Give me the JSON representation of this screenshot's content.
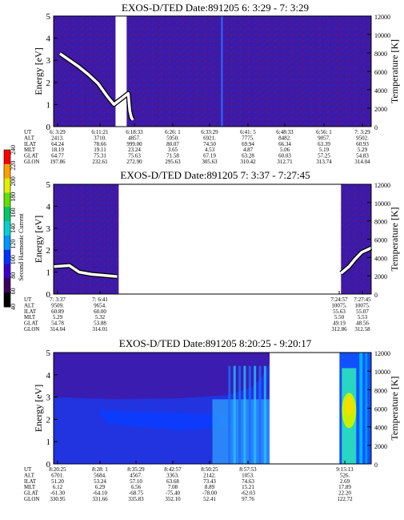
{
  "chart_data": [
    {
      "type": "heatmap",
      "title": "EXOS-D/TED  Date:891205  6: 3:29 - 7: 3:29",
      "ylabel": "Energy [eV]",
      "ylabel_right": "Temperature [K]",
      "ylim": [
        0,
        5
      ],
      "yticks": [
        "0",
        "1",
        "2",
        "3",
        "4",
        "5"
      ],
      "ylim_right": [
        0,
        12000
      ],
      "yticks_right": [
        "0",
        "2000",
        "4000",
        "6000",
        "8000",
        "10000",
        "12000"
      ],
      "background_value": 20,
      "data_gaps": [
        {
          "from": 0.195,
          "to": 0.23
        }
      ],
      "bright_streak_at": 0.53,
      "temperature_trace": [
        [
          0.02,
          3.3
        ],
        [
          0.05,
          3.0
        ],
        [
          0.08,
          2.7
        ],
        [
          0.11,
          2.35
        ],
        [
          0.14,
          1.95
        ],
        [
          0.17,
          1.35
        ],
        [
          0.19,
          1.0
        ],
        [
          0.235,
          1.5
        ],
        [
          0.24,
          0.7
        ],
        [
          0.245,
          0.4
        ],
        [
          0.25,
          0.3
        ]
      ],
      "ephemeris": {
        "labels": [
          "UT",
          "ALT",
          "ILAT",
          "MLT",
          "GLAT",
          "GLON"
        ],
        "columns": [
          [
            "6: 3:29",
            "2413.",
            "64.24",
            "18.19",
            "64.77",
            "197.86"
          ],
          [
            "6:11:21",
            "3710.",
            "78.66",
            "19.11",
            "75.31",
            "232.61"
          ],
          [
            "6:18:33",
            "4857.",
            "999.00",
            "23.24",
            "75.63",
            "272.90"
          ],
          [
            "6:26: 1",
            "5950.",
            "80.07",
            "3.65",
            "71.58",
            "295.63"
          ],
          [
            "6:33:29",
            "6921.",
            "74.50",
            "4.53",
            "67.19",
            "305.63"
          ],
          [
            "6:41: 5",
            "7775.",
            "69.94",
            "4.87",
            "63.28",
            "310.42"
          ],
          [
            "6:48:33",
            "8482.",
            "66.34",
            "5.06",
            "60.03",
            "312.71"
          ],
          [
            "6:56: 1",
            "9057.",
            "63.39",
            "5.19",
            "57.25",
            "313.74"
          ],
          [
            "7: 3:29",
            "9502.",
            "60.93",
            "5.29",
            "54.83",
            "314.04"
          ]
        ]
      }
    },
    {
      "type": "heatmap",
      "title": "EXOS-D/TED  Date:891205  7: 3:37 - 7:27:45",
      "ylabel": "Energy [eV]",
      "ylabel_right": "Temperature [K]",
      "ylim": [
        0,
        5
      ],
      "yticks": [
        "0",
        "1",
        "2",
        "3",
        "4",
        "5"
      ],
      "ylim_right": [
        0,
        12000
      ],
      "yticks_right": [
        "0",
        "2000",
        "4000",
        "6000",
        "8000",
        "10000",
        "12000"
      ],
      "background_value": 20,
      "data_segments": [
        {
          "from": 0.0,
          "to": 0.205
        },
        {
          "from": 0.905,
          "to": 1.0
        }
      ],
      "temperature_trace": [
        [
          0.0,
          1.25
        ],
        [
          0.05,
          1.3
        ],
        [
          0.08,
          1.0
        ],
        [
          0.12,
          0.9
        ],
        [
          0.16,
          0.85
        ],
        [
          0.2,
          0.8
        ],
        [
          0.905,
          0.95
        ],
        [
          0.93,
          1.25
        ],
        [
          0.95,
          1.6
        ],
        [
          0.97,
          1.9
        ],
        [
          1.0,
          2.1
        ]
      ],
      "ephemeris": {
        "labels": [
          "UT",
          "ALT",
          "ILAT",
          "MLT",
          "GLAT",
          "GLON"
        ],
        "columns": [
          [
            "7: 3:37",
            "9509.",
            "60.89",
            "5.29",
            "54.78",
            "314.04"
          ],
          [
            "7: 6:41",
            "9654.",
            "60.00",
            "5.32",
            "53.88",
            "314.01"
          ],
          [
            "7:24:57",
            "10075.",
            "55.63",
            "5.50",
            "49.19",
            "312.86"
          ],
          [
            "7:27:45",
            "10075.",
            "55.07",
            "5.53",
            "48.56",
            "312.58"
          ]
        ]
      }
    },
    {
      "type": "heatmap",
      "title": "EXOS-D/TED  Date:891205  8:20:25 - 9:20:17",
      "ylabel": "Energy [eV]",
      "ylabel_right": "Temperature [K]",
      "ylim": [
        0,
        5
      ],
      "yticks": [
        "0",
        "1",
        "2",
        "3",
        "4",
        "5"
      ],
      "ylim_right": [
        0,
        12000
      ],
      "yticks_right": [
        "0",
        "2000",
        "4000",
        "6000",
        "8000",
        "10000",
        "12000"
      ],
      "data_segments": [
        {
          "from": 0.0,
          "to": 0.68
        },
        {
          "from": 0.9,
          "to": 1.0
        }
      ],
      "features": {
        "upper_boundary": [
          [
            0.0,
            3.0
          ],
          [
            0.2,
            2.9
          ],
          [
            0.4,
            2.95
          ],
          [
            0.55,
            3.1
          ],
          [
            0.62,
            3.4
          ],
          [
            0.65,
            3.8
          ],
          [
            0.68,
            4.5
          ]
        ],
        "dense_core": [
          [
            0.14,
            2.4
          ],
          [
            0.55,
            2.2
          ],
          [
            0.6,
            1.7
          ],
          [
            0.4,
            1.5
          ],
          [
            0.17,
            1.8
          ]
        ],
        "light_band": [
          [
            0.5,
            1.6
          ],
          [
            0.68,
            1.2
          ]
        ]
      },
      "ephemeris": {
        "labels": [
          "UT",
          "ALT",
          "ILAT",
          "MLT",
          "GLAT",
          "GLON"
        ],
        "columns": [
          [
            "8:20:25",
            "6701.",
            "51.20",
            "6.12",
            "-61.30",
            "330.95"
          ],
          [
            "8:28: 1",
            "5684.",
            "53.24",
            "6.29",
            "-64.10",
            "331.66"
          ],
          [
            "8:35:29",
            "4567.",
            "57.10",
            "6.56",
            "-68.75",
            "335.83"
          ],
          [
            "8:42:57",
            "3363.",
            "63.68",
            "7.08",
            "-75.40",
            "352.10"
          ],
          [
            "8:50:25",
            "2142.",
            "73.43",
            "8.89",
            "-78.00",
            "52.41"
          ],
          [
            "8:57:53",
            "1053.",
            "74.63",
            "15.21",
            "-62.03",
            "97.76"
          ],
          [
            "9:15:13",
            "526.",
            "2.69",
            "17.89",
            "22.20",
            "122.72"
          ]
        ]
      }
    },
    {
      "type": "colorbar",
      "label": "Second Harmonic Current",
      "ticks": [
        "40",
        "60",
        "80",
        "100",
        "120",
        "140",
        "160",
        "180",
        "200",
        "220",
        "240"
      ],
      "range": [
        40,
        240
      ],
      "colors": [
        "#000000",
        "#3b0060",
        "#3a00c8",
        "#0030ff",
        "#0096ff",
        "#00d2d2",
        "#00c864",
        "#60e000",
        "#e0f000",
        "#ffa000",
        "#ff0000"
      ]
    }
  ]
}
